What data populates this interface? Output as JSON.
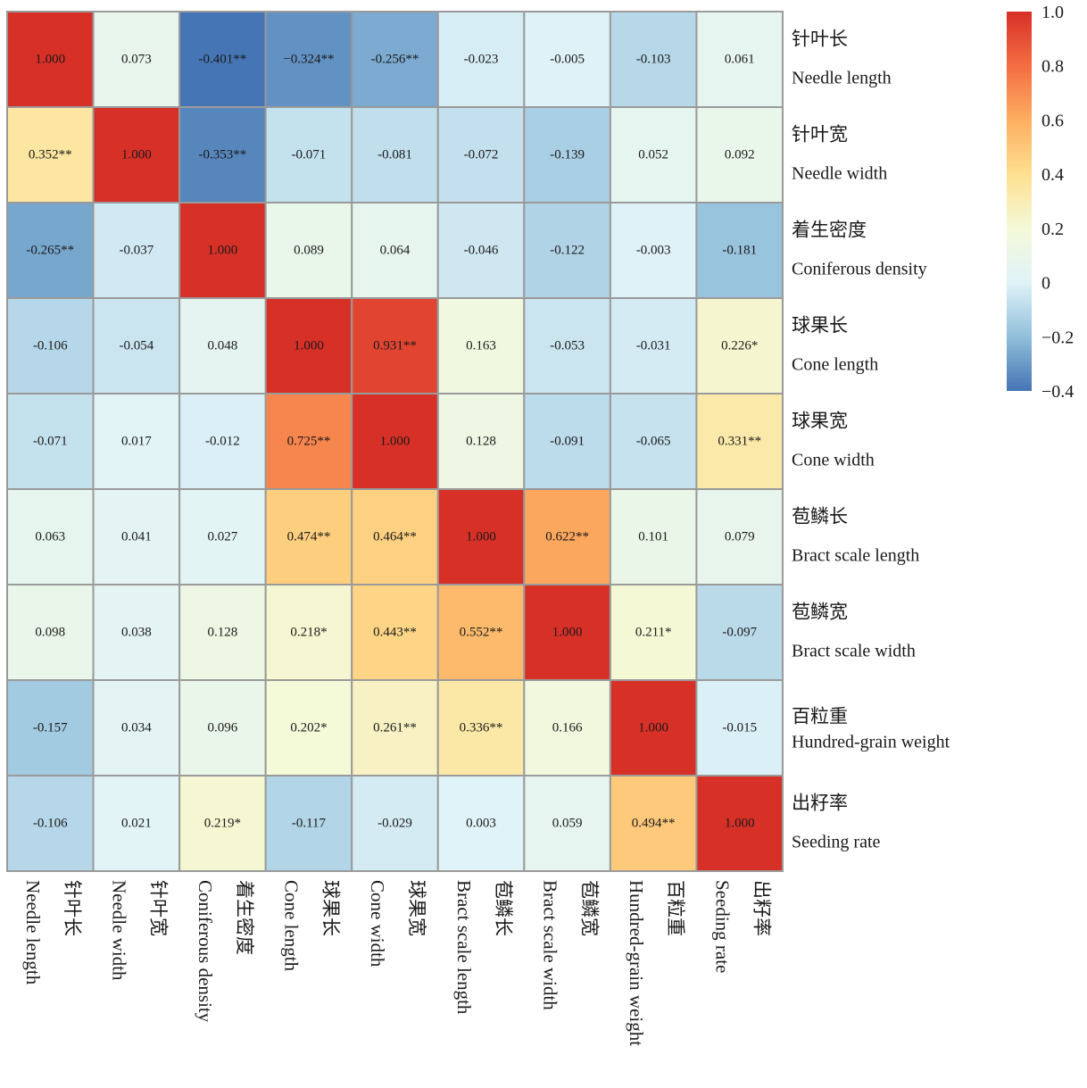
{
  "chart_data": {
    "type": "heatmap",
    "variables": [
      {
        "cn": "针叶长",
        "en": "Needle length"
      },
      {
        "cn": "针叶宽",
        "en": "Needle width"
      },
      {
        "cn": "着生密度",
        "en": "Coniferous density"
      },
      {
        "cn": "球果长",
        "en": "Cone length"
      },
      {
        "cn": "球果宽",
        "en": "Cone width"
      },
      {
        "cn": "苞鳞长",
        "en": "Bract scale length"
      },
      {
        "cn": "苞鳞宽",
        "en": "Bract scale width"
      },
      {
        "cn": "百粒重",
        "en": "Hundred-grain weight"
      },
      {
        "cn": "出籽率",
        "en": "Seeding rate"
      }
    ],
    "values": [
      [
        1.0,
        0.073,
        -0.401,
        -0.324,
        -0.256,
        -0.023,
        -0.005,
        -0.103,
        0.061
      ],
      [
        0.352,
        1.0,
        -0.353,
        -0.071,
        -0.081,
        -0.072,
        -0.139,
        0.052,
        0.092
      ],
      [
        -0.265,
        -0.037,
        1.0,
        0.089,
        0.064,
        -0.046,
        -0.122,
        -0.003,
        -0.181
      ],
      [
        -0.106,
        -0.054,
        0.048,
        1.0,
        0.931,
        0.163,
        -0.053,
        -0.031,
        0.226
      ],
      [
        -0.071,
        0.017,
        -0.012,
        0.725,
        1.0,
        0.128,
        -0.091,
        -0.065,
        0.331
      ],
      [
        0.063,
        0.041,
        0.027,
        0.474,
        0.464,
        1.0,
        0.622,
        0.101,
        0.079
      ],
      [
        0.098,
        0.038,
        0.128,
        0.218,
        0.443,
        0.552,
        1.0,
        0.211,
        -0.097
      ],
      [
        -0.157,
        0.034,
        0.096,
        0.202,
        0.261,
        0.336,
        0.166,
        1.0,
        -0.015
      ],
      [
        -0.106,
        0.021,
        0.219,
        -0.117,
        -0.029,
        0.003,
        0.059,
        0.494,
        1.0
      ]
    ],
    "labels": [
      [
        "1.000",
        "0.073",
        "-0.401**",
        "−0.324**",
        "-0.256**",
        "-0.023",
        "-0.005",
        "-0.103",
        "0.061"
      ],
      [
        "0.352**",
        "1.000",
        "-0.353**",
        "-0.071",
        "-0.081",
        "-0.072",
        "-0.139",
        "0.052",
        "0.092"
      ],
      [
        "-0.265**",
        "-0.037",
        "1.000",
        "0.089",
        "0.064",
        "-0.046",
        "-0.122",
        "-0.003",
        "-0.181"
      ],
      [
        "-0.106",
        "-0.054",
        "0.048",
        "1.000",
        "0.931**",
        "0.163",
        "-0.053",
        "-0.031",
        "0.226*"
      ],
      [
        "-0.071",
        "0.017",
        "-0.012",
        "0.725**",
        "1.000",
        "0.128",
        "-0.091",
        "-0.065",
        "0.331**"
      ],
      [
        "0.063",
        "0.041",
        "0.027",
        "0.474**",
        "0.464**",
        "1.000",
        "0.622**",
        "0.101",
        "0.079"
      ],
      [
        "0.098",
        "0.038",
        "0.128",
        "0.218*",
        "0.443**",
        "0.552**",
        "1.000",
        "0.211*",
        "-0.097"
      ],
      [
        "-0.157",
        "0.034",
        "0.096",
        "0.202*",
        "0.261**",
        "0.336**",
        "0.166",
        "1.000",
        "-0.015"
      ],
      [
        "-0.106",
        "0.021",
        "0.219*",
        "-0.117",
        "-0.029",
        "0.003",
        "0.059",
        "0.494**",
        "1.000"
      ]
    ],
    "color_scale": {
      "range": [
        -0.4,
        1.0
      ],
      "ticks": [
        "1.0",
        "0.8",
        "0.6",
        "0.4",
        "0.2",
        "0",
        "−0.2",
        "−0.4"
      ],
      "tick_values": [
        1.0,
        0.8,
        0.6,
        0.4,
        0.2,
        0,
        -0.2,
        -0.4
      ],
      "stops": [
        {
          "v": -0.4,
          "color": "#4575b4"
        },
        {
          "v": -0.2,
          "color": "#91bfdb"
        },
        {
          "v": 0.0,
          "color": "#e0f3f8"
        },
        {
          "v": 0.2,
          "color": "#f4f9d9"
        },
        {
          "v": 0.4,
          "color": "#fee090"
        },
        {
          "v": 0.6,
          "color": "#fdae61"
        },
        {
          "v": 0.8,
          "color": "#f46d43"
        },
        {
          "v": 1.0,
          "color": "#d73027"
        }
      ]
    },
    "grid": true,
    "legend": "right"
  }
}
